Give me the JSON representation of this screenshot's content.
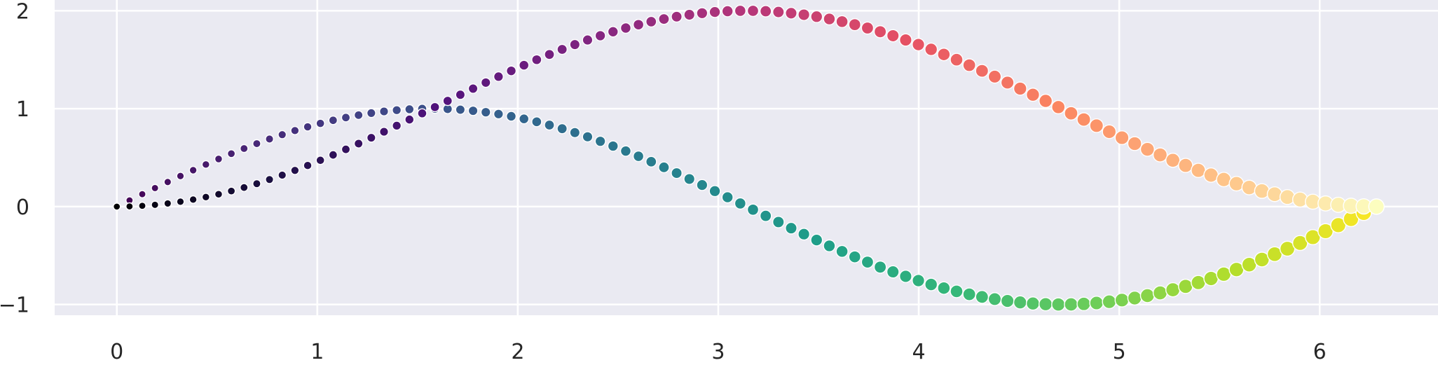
{
  "chart_data": {
    "type": "scatter",
    "title": "",
    "xlabel": "",
    "ylabel": "",
    "xlim": [
      -0.31,
      6.59
    ],
    "ylim": [
      -1.11,
      2.11
    ],
    "x_ticks": [
      0,
      1,
      2,
      3,
      4,
      5,
      6
    ],
    "y_ticks": [
      -1,
      0,
      1,
      2
    ],
    "x_tick_labels": [
      "0",
      "1",
      "2",
      "3",
      "4",
      "5",
      "6"
    ],
    "y_tick_labels": [
      "−1",
      "0",
      "1",
      "2"
    ],
    "grid": true,
    "background_color": "#eaeaf2",
    "series": [
      {
        "x_range": [
          0,
          6.283
        ],
        "num_points": 100,
        "y_function": "sin(x)",
        "colormap": "viridis",
        "size_range": [
          10,
          22
        ],
        "colors": [
          "#440154",
          "#482878",
          "#3e4a89",
          "#31688e",
          "#26828e",
          "#1f9e89",
          "#35b779",
          "#6ece58",
          "#b5de2b",
          "#fde725"
        ]
      },
      {
        "x_range": [
          0,
          6.283
        ],
        "num_points": 100,
        "y_function": "1 - cos(x)",
        "colormap": "magma",
        "size_range": [
          10,
          22
        ],
        "colors": [
          "#000004",
          "#1c1044",
          "#4f127b",
          "#812581",
          "#b5367a",
          "#e55064",
          "#fb8761",
          "#fec287",
          "#fcfdbf"
        ]
      }
    ]
  }
}
